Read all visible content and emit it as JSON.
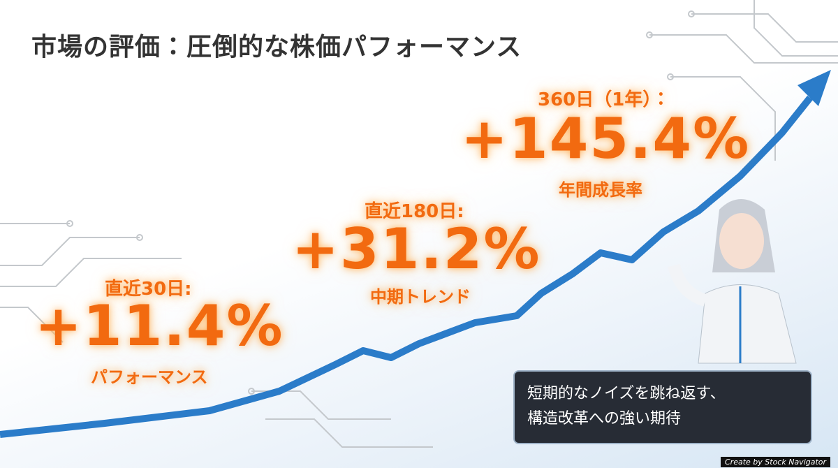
{
  "title": "市場の評価：圧倒的な株価パフォーマンス",
  "stats": [
    {
      "label": "直近30日:",
      "value": "+11.4%",
      "caption": "パフォーマンス"
    },
    {
      "label": "直近180日:",
      "value": "+31.2%",
      "caption": "中期トレンド"
    },
    {
      "label": "360日（1年）：",
      "value": "+145.4%",
      "caption": "年間成長率"
    }
  ],
  "callout": {
    "lines": [
      "短期的なノイズを跳ね返す、",
      "構造改革への強い期待"
    ]
  },
  "credit": "Create by Stock Navigator"
}
